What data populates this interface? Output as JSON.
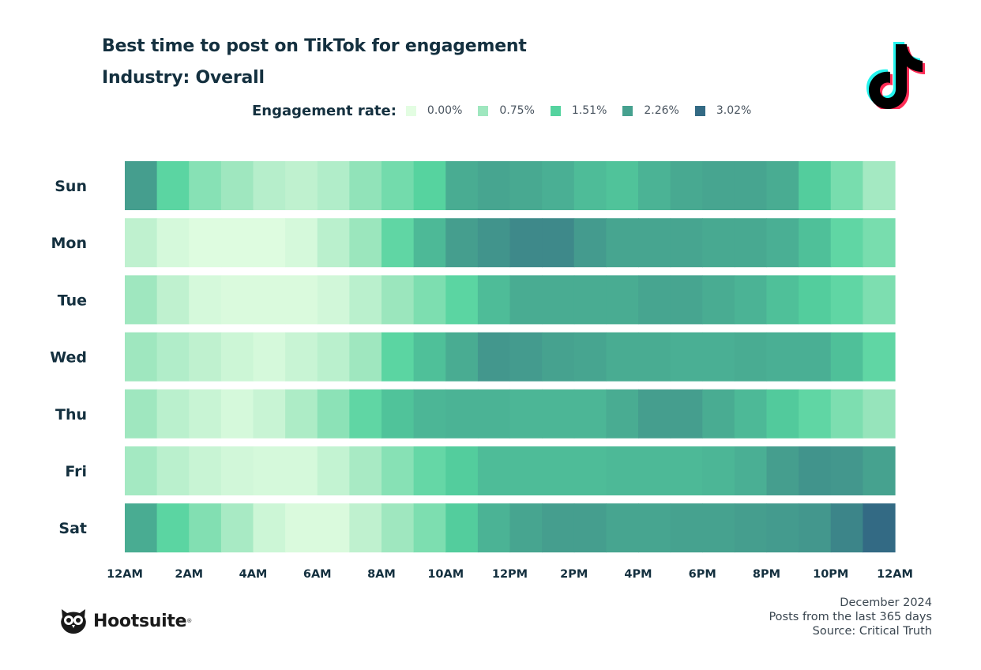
{
  "header": {
    "title": "Best time to post on TikTok for engagement",
    "subtitle": "Industry: Overall"
  },
  "legend": {
    "title": "Engagement rate:",
    "items": [
      {
        "label": "0.00%",
        "color": "#e3fde2"
      },
      {
        "label": "0.75%",
        "color": "#9fe7bf"
      },
      {
        "label": "1.51%",
        "color": "#55d39f"
      },
      {
        "label": "2.26%",
        "color": "#46a18f"
      },
      {
        "label": "3.02%",
        "color": "#336a84"
      }
    ]
  },
  "chart_data": {
    "type": "heatmap",
    "title": "Best time to post on TikTok for engagement",
    "subtitle": "Industry: Overall",
    "colorbar_label": "Engagement rate:",
    "value_range": [
      0.0,
      3.02
    ],
    "value_unit": "%",
    "rows": [
      "Sun",
      "Mon",
      "Tue",
      "Wed",
      "Thu",
      "Fri",
      "Sat"
    ],
    "x_tick_labels": [
      "12AM",
      "2AM",
      "4AM",
      "6AM",
      "8AM",
      "10AM",
      "12PM",
      "2PM",
      "4PM",
      "6PM",
      "8PM",
      "10PM",
      "12AM"
    ],
    "columns": [
      "12AM",
      "1AM",
      "2AM",
      "3AM",
      "4AM",
      "5AM",
      "6AM",
      "7AM",
      "8AM",
      "9AM",
      "10AM",
      "11AM",
      "12PM",
      "1PM",
      "2PM",
      "3PM",
      "4PM",
      "5PM",
      "6PM",
      "7PM",
      "8PM",
      "9PM",
      "10PM",
      "11PM"
    ],
    "values": [
      [
        2.3,
        1.45,
        1.0,
        0.75,
        0.5,
        0.4,
        0.55,
        0.9,
        1.2,
        1.5,
        2.1,
        2.2,
        2.15,
        2.05,
        1.85,
        1.75,
        2.0,
        2.15,
        2.2,
        2.2,
        2.1,
        1.6,
        1.15,
        0.7
      ],
      [
        0.4,
        0.15,
        0.05,
        0.05,
        0.05,
        0.15,
        0.45,
        0.8,
        1.4,
        1.9,
        2.3,
        2.45,
        2.6,
        2.6,
        2.35,
        2.2,
        2.2,
        2.2,
        2.15,
        2.15,
        2.05,
        1.8,
        1.4,
        1.15
      ],
      [
        0.75,
        0.4,
        0.15,
        0.1,
        0.1,
        0.1,
        0.2,
        0.45,
        0.8,
        1.1,
        1.45,
        1.85,
        2.1,
        2.1,
        2.1,
        2.1,
        2.2,
        2.2,
        2.1,
        2.0,
        1.8,
        1.6,
        1.4,
        1.1
      ],
      [
        0.75,
        0.55,
        0.4,
        0.25,
        0.15,
        0.3,
        0.45,
        0.75,
        1.45,
        1.8,
        2.1,
        2.4,
        2.35,
        2.25,
        2.2,
        2.1,
        2.1,
        2.05,
        2.05,
        2.1,
        2.05,
        2.05,
        1.8,
        1.4
      ],
      [
        0.75,
        0.45,
        0.3,
        0.15,
        0.3,
        0.6,
        0.95,
        1.4,
        1.75,
        1.95,
        2.0,
        2.0,
        1.95,
        1.95,
        1.95,
        2.1,
        2.3,
        2.3,
        2.1,
        1.9,
        1.65,
        1.4,
        1.1,
        0.85
      ],
      [
        0.7,
        0.45,
        0.3,
        0.2,
        0.15,
        0.15,
        0.35,
        0.65,
        1.0,
        1.35,
        1.6,
        1.85,
        1.85,
        1.85,
        1.85,
        1.9,
        1.9,
        1.9,
        1.95,
        2.05,
        2.3,
        2.45,
        2.4,
        2.25
      ],
      [
        2.1,
        1.45,
        1.05,
        0.65,
        0.25,
        0.1,
        0.1,
        0.4,
        0.75,
        1.1,
        1.6,
        2.0,
        2.2,
        2.3,
        2.3,
        2.2,
        2.2,
        2.25,
        2.25,
        2.3,
        2.35,
        2.4,
        2.65,
        3.02
      ]
    ]
  },
  "brand": {
    "name": "Hootsuite"
  },
  "footnotes": {
    "date": "December 2024",
    "period": "Posts from the last 365 days",
    "source": "Source: Critical Truth"
  }
}
